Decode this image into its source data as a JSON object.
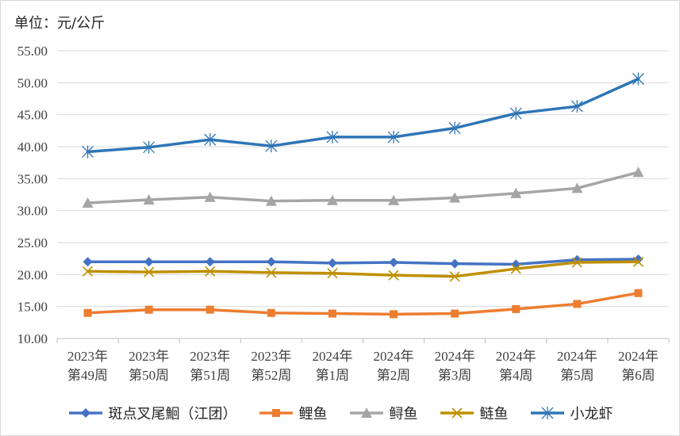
{
  "unit_label": "单位：元/公斤",
  "chart_data": {
    "type": "line",
    "title": "",
    "xlabel": "",
    "ylabel": "",
    "ylim": [
      10,
      55
    ],
    "y_ticks": [
      "10.00",
      "15.00",
      "20.00",
      "25.00",
      "30.00",
      "35.00",
      "40.00",
      "45.00",
      "50.00",
      "55.00"
    ],
    "grid": true,
    "legend_position": "bottom",
    "categories": [
      [
        "2023年",
        "第49周"
      ],
      [
        "2023年",
        "第50周"
      ],
      [
        "2023年",
        "第51周"
      ],
      [
        "2023年",
        "第52周"
      ],
      [
        "2024年",
        "第1周"
      ],
      [
        "2024年",
        "第2周"
      ],
      [
        "2024年",
        "第3周"
      ],
      [
        "2024年",
        "第4周"
      ],
      [
        "2024年",
        "第5周"
      ],
      [
        "2024年",
        "第6周"
      ]
    ],
    "series": [
      {
        "name": "斑点叉尾鮰（江团）",
        "color": "#4472c4",
        "marker": "diamond",
        "values": [
          22.0,
          22.0,
          22.0,
          22.0,
          21.8,
          21.9,
          21.7,
          21.6,
          22.3,
          22.4
        ]
      },
      {
        "name": "鲤鱼",
        "color": "#ed7d31",
        "marker": "square",
        "values": [
          14.0,
          14.5,
          14.5,
          14.0,
          13.9,
          13.8,
          13.9,
          14.6,
          15.4,
          17.1
        ]
      },
      {
        "name": "鲟鱼",
        "color": "#a5a5a5",
        "marker": "triangle",
        "values": [
          31.2,
          31.7,
          32.1,
          31.5,
          31.6,
          31.6,
          32.0,
          32.7,
          33.5,
          36.0
        ]
      },
      {
        "name": "鲢鱼",
        "color": "#bf9000",
        "marker": "x",
        "values": [
          20.5,
          20.4,
          20.5,
          20.3,
          20.2,
          19.9,
          19.7,
          20.9,
          21.9,
          22.0
        ]
      },
      {
        "name": "小龙虾",
        "color": "#2e75b6",
        "marker": "star",
        "values": [
          39.2,
          39.9,
          41.1,
          40.1,
          41.5,
          41.5,
          42.9,
          45.2,
          46.3,
          50.6
        ]
      }
    ]
  }
}
